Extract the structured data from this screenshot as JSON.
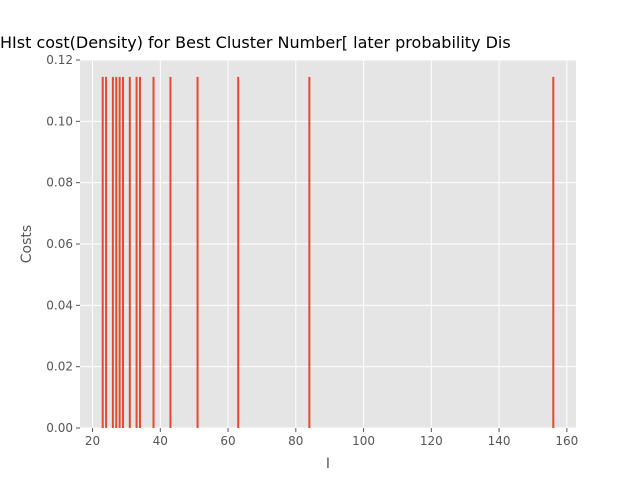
{
  "chart_data": {
    "type": "bar",
    "title": "HIst cost(Density) for Best Cluster Number[ later probability Dis",
    "xlabel": "I",
    "ylabel": "Costs",
    "xlim": [
      16.3,
      162.7
    ],
    "ylim": [
      0,
      0.12
    ],
    "xticks": [
      20,
      40,
      60,
      80,
      100,
      120,
      140,
      160
    ],
    "yticks": [
      0.0,
      0.02,
      0.04,
      0.06,
      0.08,
      0.1,
      0.12
    ],
    "xtick_labels": [
      "20",
      "40",
      "60",
      "80",
      "100",
      "120",
      "140",
      "160"
    ],
    "ytick_labels": [
      "0.00",
      "0.02",
      "0.04",
      "0.06",
      "0.08",
      "0.10",
      "0.12"
    ],
    "grid": true,
    "background_color": "#E5E5E5",
    "bar_color": "#E24A33",
    "x": [
      23,
      24,
      26,
      27,
      28,
      29,
      31,
      33,
      34,
      38,
      43,
      51,
      63,
      84,
      156
    ],
    "values": [
      0.1145,
      0.1145,
      0.1145,
      0.1145,
      0.1145,
      0.1145,
      0.1145,
      0.1145,
      0.1145,
      0.1145,
      0.1145,
      0.1145,
      0.1145,
      0.1145,
      0.1145
    ]
  }
}
